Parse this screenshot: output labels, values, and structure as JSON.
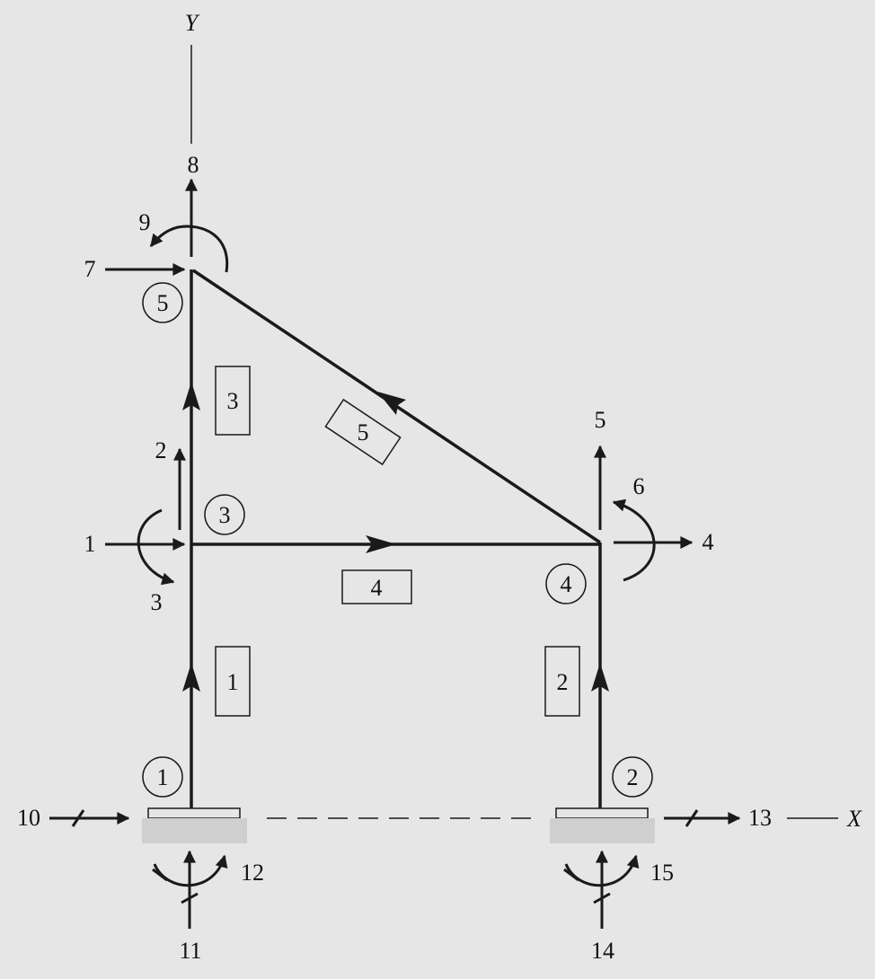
{
  "axes": {
    "x_label": "X",
    "y_label": "Y"
  },
  "nodes": [
    {
      "id": "1",
      "label": "1"
    },
    {
      "id": "2",
      "label": "2"
    },
    {
      "id": "3",
      "label": "3"
    },
    {
      "id": "4",
      "label": "4"
    },
    {
      "id": "5",
      "label": "5"
    }
  ],
  "members": [
    {
      "id": "1",
      "label": "1",
      "from": "1",
      "to": "3"
    },
    {
      "id": "2",
      "label": "2",
      "from": "2",
      "to": "4"
    },
    {
      "id": "3",
      "label": "3",
      "from": "3",
      "to": "5"
    },
    {
      "id": "4",
      "label": "4",
      "from": "3",
      "to": "4"
    },
    {
      "id": "5",
      "label": "5",
      "from": "4",
      "to": "5"
    }
  ],
  "dofs": [
    "1",
    "2",
    "3",
    "4",
    "5",
    "6",
    "7",
    "8",
    "9",
    "10",
    "11",
    "12",
    "13",
    "14",
    "15"
  ],
  "colors": {
    "background": "#e6e6e6",
    "ink": "#1a1a1a",
    "support": "#cfcfcf"
  }
}
